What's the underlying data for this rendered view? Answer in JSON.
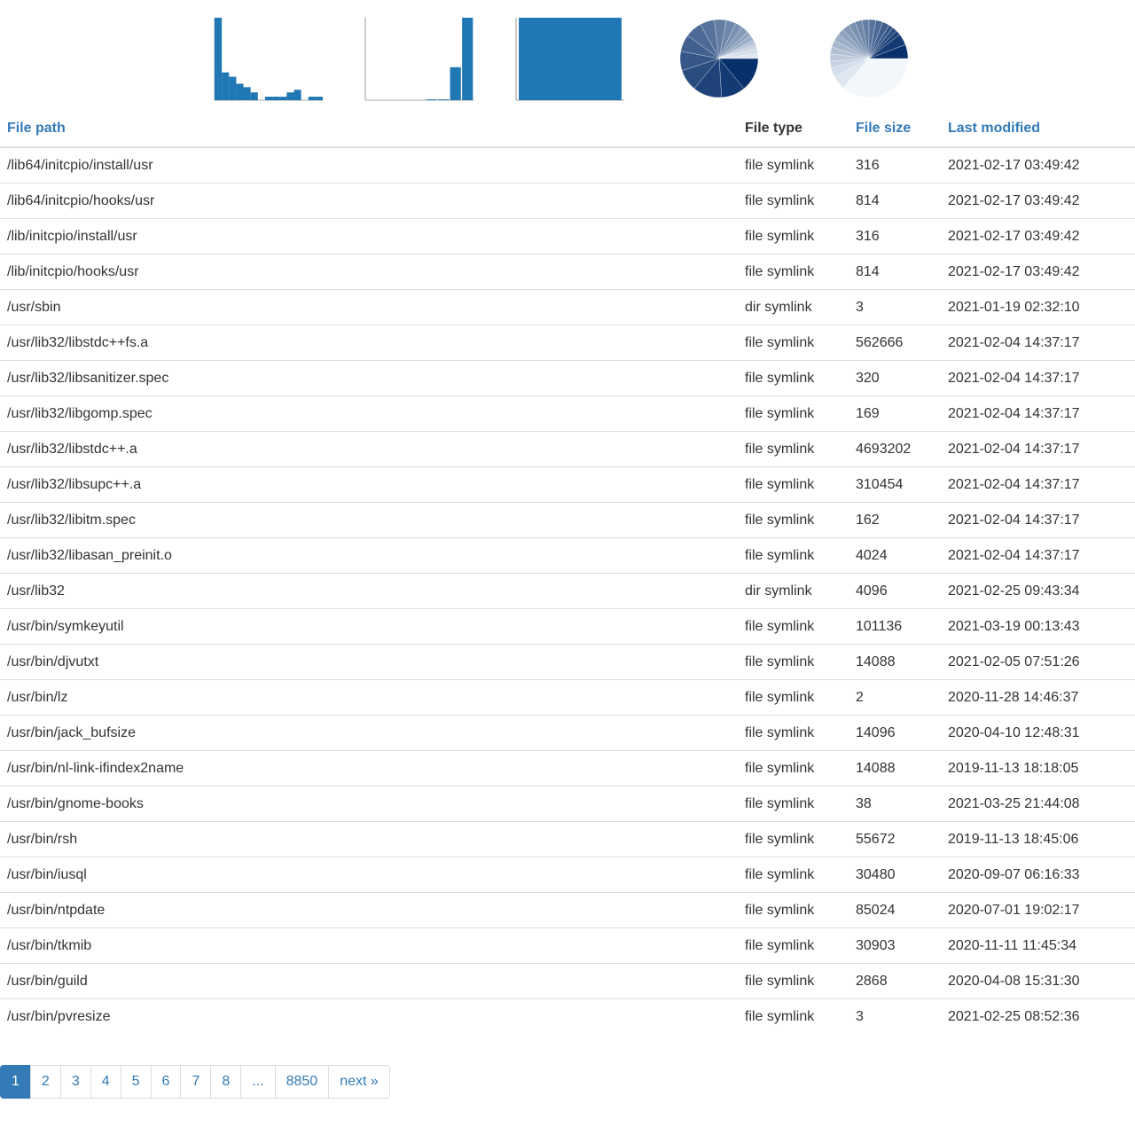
{
  "colors": {
    "link": "#337ab7",
    "bar": "#1f77b4"
  },
  "thumbnails": [
    {
      "type": "bar",
      "values": [
        95,
        32,
        27,
        19,
        15,
        9,
        0,
        4,
        4,
        4,
        9,
        12,
        0,
        4,
        4
      ]
    },
    {
      "type": "bar",
      "values": [
        0,
        0,
        0,
        0,
        0,
        1,
        1,
        40,
        100
      ]
    },
    {
      "type": "bar",
      "values": [
        100
      ]
    },
    {
      "type": "pie",
      "palette": "blues-dark",
      "values": [
        14,
        10,
        12,
        9,
        8,
        7,
        7,
        6,
        5,
        4,
        3,
        3,
        2,
        2,
        1,
        1,
        1,
        1,
        2,
        2
      ]
    },
    {
      "type": "pie",
      "palette": "blues-light",
      "values": [
        38,
        6,
        4,
        3,
        3,
        3,
        3,
        3,
        3,
        3,
        3,
        3,
        3,
        3,
        3,
        3,
        2,
        2,
        2,
        5,
        6
      ]
    }
  ],
  "table": {
    "headers": {
      "path": "File path",
      "type": "File type",
      "size": "File size",
      "modified": "Last modified"
    },
    "rows": [
      [
        "/lib64/initcpio/install/usr",
        "file symlink",
        "316",
        "2021-02-17 03:49:42"
      ],
      [
        "/lib64/initcpio/hooks/usr",
        "file symlink",
        "814",
        "2021-02-17 03:49:42"
      ],
      [
        "/lib/initcpio/install/usr",
        "file symlink",
        "316",
        "2021-02-17 03:49:42"
      ],
      [
        "/lib/initcpio/hooks/usr",
        "file symlink",
        "814",
        "2021-02-17 03:49:42"
      ],
      [
        "/usr/sbin",
        "dir symlink",
        "3",
        "2021-01-19 02:32:10"
      ],
      [
        "/usr/lib32/libstdc++fs.a",
        "file symlink",
        "562666",
        "2021-02-04 14:37:17"
      ],
      [
        "/usr/lib32/libsanitizer.spec",
        "file symlink",
        "320",
        "2021-02-04 14:37:17"
      ],
      [
        "/usr/lib32/libgomp.spec",
        "file symlink",
        "169",
        "2021-02-04 14:37:17"
      ],
      [
        "/usr/lib32/libstdc++.a",
        "file symlink",
        "4693202",
        "2021-02-04 14:37:17"
      ],
      [
        "/usr/lib32/libsupc++.a",
        "file symlink",
        "310454",
        "2021-02-04 14:37:17"
      ],
      [
        "/usr/lib32/libitm.spec",
        "file symlink",
        "162",
        "2021-02-04 14:37:17"
      ],
      [
        "/usr/lib32/libasan_preinit.o",
        "file symlink",
        "4024",
        "2021-02-04 14:37:17"
      ],
      [
        "/usr/lib32",
        "dir symlink",
        "4096",
        "2021-02-25 09:43:34"
      ],
      [
        "/usr/bin/symkeyutil",
        "file symlink",
        "101136",
        "2021-03-19 00:13:43"
      ],
      [
        "/usr/bin/djvutxt",
        "file symlink",
        "14088",
        "2021-02-05 07:51:26"
      ],
      [
        "/usr/bin/lz",
        "file symlink",
        "2",
        "2020-11-28 14:46:37"
      ],
      [
        "/usr/bin/jack_bufsize",
        "file symlink",
        "14096",
        "2020-04-10 12:48:31"
      ],
      [
        "/usr/bin/nl-link-ifindex2name",
        "file symlink",
        "14088",
        "2019-11-13 18:18:05"
      ],
      [
        "/usr/bin/gnome-books",
        "file symlink",
        "38",
        "2021-03-25 21:44:08"
      ],
      [
        "/usr/bin/rsh",
        "file symlink",
        "55672",
        "2019-11-13 18:45:06"
      ],
      [
        "/usr/bin/iusql",
        "file symlink",
        "30480",
        "2020-09-07 06:16:33"
      ],
      [
        "/usr/bin/ntpdate",
        "file symlink",
        "85024",
        "2020-07-01 19:02:17"
      ],
      [
        "/usr/bin/tkmib",
        "file symlink",
        "30903",
        "2020-11-11 11:45:34"
      ],
      [
        "/usr/bin/guild",
        "file symlink",
        "2868",
        "2020-04-08 15:31:30"
      ],
      [
        "/usr/bin/pvresize",
        "file symlink",
        "3",
        "2021-02-25 08:52:36"
      ]
    ]
  },
  "pagination": {
    "pages": [
      "1",
      "2",
      "3",
      "4",
      "5",
      "6",
      "7",
      "8",
      "...",
      "8850"
    ],
    "current": "1",
    "next_label": "next »"
  }
}
